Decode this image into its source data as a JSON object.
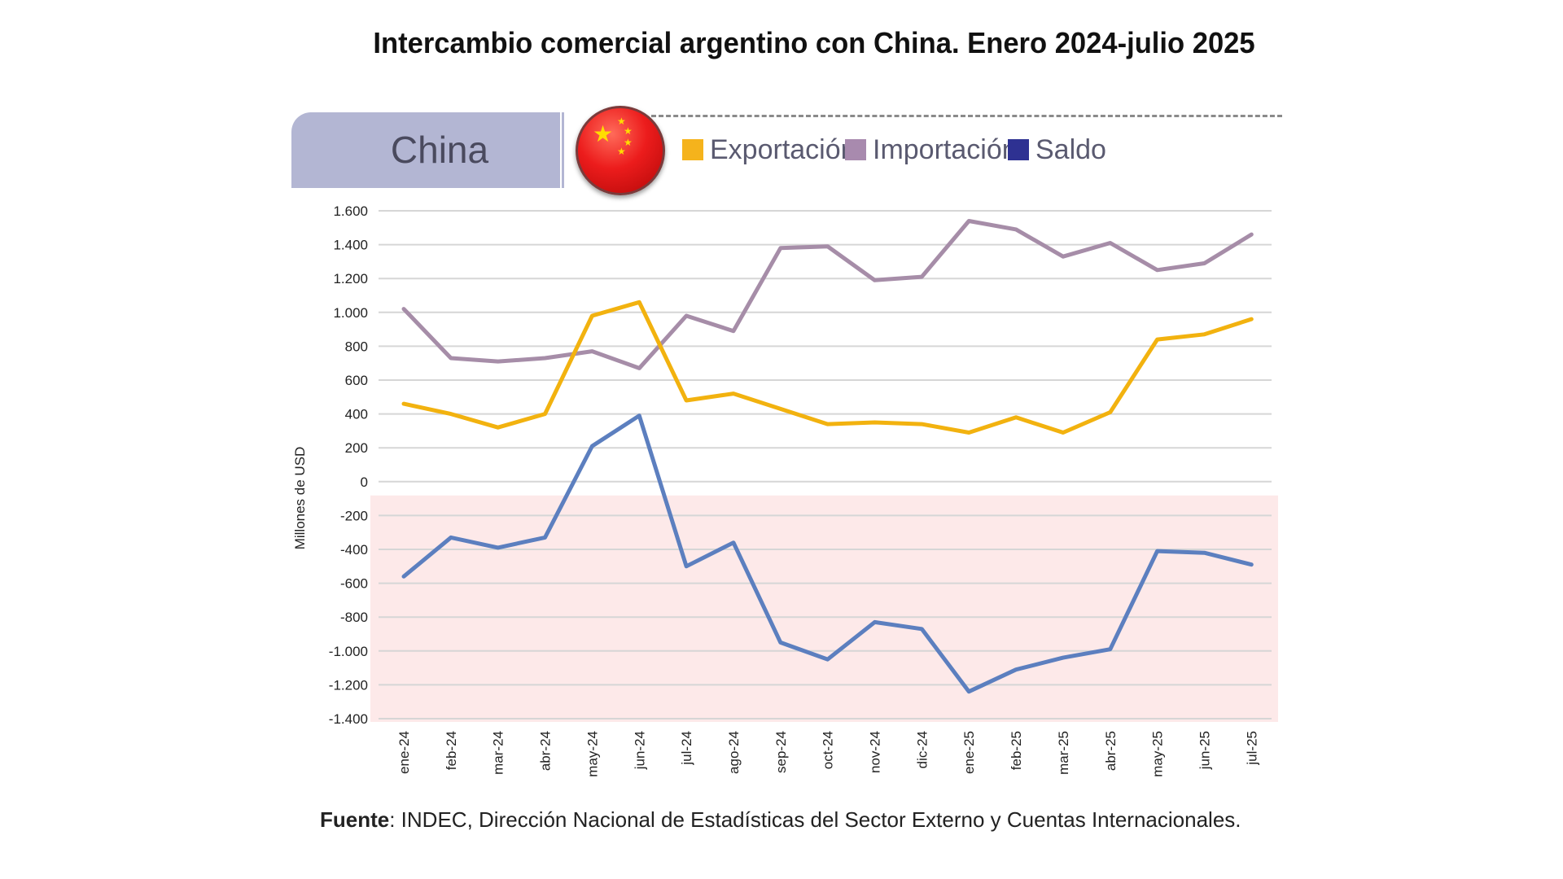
{
  "title": "Intercambio comercial argentino con China. Enero 2024-julio 2025",
  "panel": {
    "country_label": "China",
    "flag_icon": "china-flag-icon"
  },
  "source": {
    "label": "Fuente",
    "text": ": INDEC, Dirección Nacional de Estadísticas del Sector Externo y Cuentas Internacionales."
  },
  "chart_data": {
    "type": "line",
    "ylabel": "Millones de USD",
    "xlabel": "",
    "ylim": [
      -1400,
      1600
    ],
    "yticks": [
      1600,
      1400,
      1200,
      1000,
      800,
      600,
      400,
      200,
      0,
      -200,
      -400,
      -600,
      -800,
      -1000,
      -1200,
      -1400
    ],
    "ytick_labels": [
      "1.600",
      "1.400",
      "1.200",
      "1.000",
      "800",
      "600",
      "400",
      "200",
      "0",
      "-200",
      "-400",
      "-600",
      "-800",
      "-1.000",
      "-1.200",
      "-1.400"
    ],
    "categories": [
      "ene-24",
      "feb-24",
      "mar-24",
      "abr-24",
      "may-24",
      "jun-24",
      "jul-24",
      "ago-24",
      "sep-24",
      "oct-24",
      "nov-24",
      "dic-24",
      "ene-25",
      "feb-25",
      "mar-25",
      "abr-25",
      "may-25",
      "jun-25",
      "jul-25"
    ],
    "grid": true,
    "negative_region_shaded": true,
    "legend_position": "top",
    "series": [
      {
        "name": "Exportación",
        "color": "#f2b20f",
        "legend_color": "#f5b31c",
        "values": [
          460,
          400,
          320,
          400,
          980,
          1060,
          480,
          520,
          430,
          340,
          350,
          340,
          290,
          380,
          290,
          410,
          840,
          870,
          960
        ]
      },
      {
        "name": "Importación",
        "color": "#a68da8",
        "legend_color": "#a88aae",
        "values": [
          1020,
          730,
          710,
          730,
          770,
          670,
          980,
          890,
          1380,
          1390,
          1190,
          1210,
          1540,
          1490,
          1330,
          1410,
          1250,
          1290,
          1460
        ]
      },
      {
        "name": "Saldo",
        "color": "#5c7fbf",
        "legend_color": "#2e3192",
        "values": [
          -560,
          -330,
          -390,
          -330,
          210,
          390,
          -500,
          -360,
          -950,
          -1050,
          -830,
          -870,
          -1240,
          -1110,
          -1040,
          -990,
          -410,
          -420,
          -490
        ]
      }
    ]
  }
}
